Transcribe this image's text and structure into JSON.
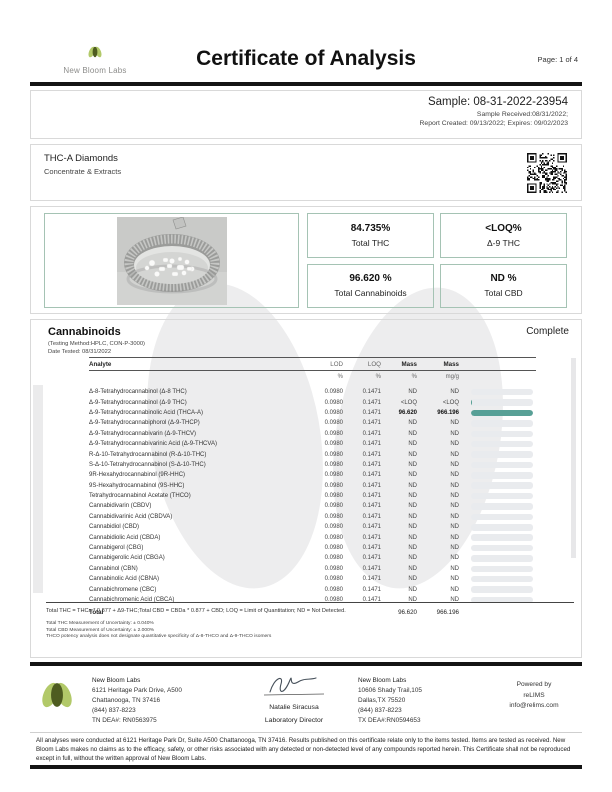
{
  "header": {
    "logo_text": "New Bloom Labs",
    "title": "Certificate of Analysis",
    "page": "Page: 1 of 4"
  },
  "sample": {
    "id_line": "Sample: 08-31-2022-23954",
    "received": "Sample Received:08/31/2022;",
    "report": "Report Created: 09/13/2022; Expires: 09/02/2023"
  },
  "product": {
    "name": "THC-A Diamonds",
    "category": "Concentrate & Extracts"
  },
  "summary": [
    {
      "value": "84.735%",
      "label": "Total THC"
    },
    {
      "value": "<LOQ%",
      "label": "Δ-9 THC"
    },
    {
      "value": "96.620 %",
      "label": "Total Cannabinoids"
    },
    {
      "value": "ND %",
      "label": "Total CBD"
    }
  ],
  "cannabinoids": {
    "title": "Cannabinoids",
    "status": "Complete",
    "method": "(Testing Method:HPLC, CON-P-3000)",
    "date_tested": "Date Tested: 08/31/2022",
    "columns": [
      "Analyte",
      "LOD",
      "LOQ",
      "Mass",
      "Mass"
    ],
    "units": [
      "",
      "%",
      "%",
      "%",
      "mg/g"
    ],
    "rows": [
      {
        "name": "Δ-8-Tetrahydrocannabinol (Δ-8 THC)",
        "lod": "0.0980",
        "loq": "0.1471",
        "mass_pct": "ND",
        "mass_mgg": "ND",
        "bar_pct": 0,
        "highlight": false
      },
      {
        "name": "Δ-9-Tetrahydrocannabinol (Δ-9 THC)",
        "lod": "0.0980",
        "loq": "0.1471",
        "mass_pct": "<LOQ",
        "mass_mgg": "<LOQ",
        "bar_pct": 2,
        "highlight": false
      },
      {
        "name": "Δ-9-Tetrahydrocannabinolic Acid (THCA-A)",
        "lod": "0.0980",
        "loq": "0.1471",
        "mass_pct": "96.620",
        "mass_mgg": "966.196",
        "bar_pct": 100,
        "highlight": true
      },
      {
        "name": "Δ-9-Tetrahydrocannabiphorol (Δ-9-THCP)",
        "lod": "0.0980",
        "loq": "0.1471",
        "mass_pct": "ND",
        "mass_mgg": "ND",
        "bar_pct": 0,
        "highlight": false
      },
      {
        "name": "Δ-9-Tetrahydrocannabivarin (Δ-9-THCV)",
        "lod": "0.0980",
        "loq": "0.1471",
        "mass_pct": "ND",
        "mass_mgg": "ND",
        "bar_pct": 0,
        "highlight": false
      },
      {
        "name": "Δ-9-Tetrahydrocannabivarinic Acid (Δ-9-THCVA)",
        "lod": "0.0980",
        "loq": "0.1471",
        "mass_pct": "ND",
        "mass_mgg": "ND",
        "bar_pct": 0,
        "highlight": false
      },
      {
        "name": "R-Δ-10-Tetrahydrocannabinol (R-Δ-10-THC)",
        "lod": "0.0980",
        "loq": "0.1471",
        "mass_pct": "ND",
        "mass_mgg": "ND",
        "bar_pct": 0,
        "highlight": false
      },
      {
        "name": "S-Δ-10-Tetrahydrocannabinol (S-Δ-10-THC)",
        "lod": "0.0980",
        "loq": "0.1471",
        "mass_pct": "ND",
        "mass_mgg": "ND",
        "bar_pct": 0,
        "highlight": false
      },
      {
        "name": "9R-Hexahydrocannabinol (9R-HHC)",
        "lod": "0.0980",
        "loq": "0.1471",
        "mass_pct": "ND",
        "mass_mgg": "ND",
        "bar_pct": 0,
        "highlight": false
      },
      {
        "name": "9S-Hexahydrocannabinol (9S-HHC)",
        "lod": "0.0980",
        "loq": "0.1471",
        "mass_pct": "ND",
        "mass_mgg": "ND",
        "bar_pct": 0,
        "highlight": false
      },
      {
        "name": "Tetrahydrocannabinol Acetate (THCO)",
        "lod": "0.0980",
        "loq": "0.1471",
        "mass_pct": "ND",
        "mass_mgg": "ND",
        "bar_pct": 0,
        "highlight": false
      },
      {
        "name": "Cannabidivarin (CBDV)",
        "lod": "0.0980",
        "loq": "0.1471",
        "mass_pct": "ND",
        "mass_mgg": "ND",
        "bar_pct": 0,
        "highlight": false
      },
      {
        "name": "Cannabidivarinic Acid (CBDVA)",
        "lod": "0.0980",
        "loq": "0.1471",
        "mass_pct": "ND",
        "mass_mgg": "ND",
        "bar_pct": 0,
        "highlight": false
      },
      {
        "name": "Cannabidiol (CBD)",
        "lod": "0.0980",
        "loq": "0.1471",
        "mass_pct": "ND",
        "mass_mgg": "ND",
        "bar_pct": 0,
        "highlight": false
      },
      {
        "name": "Cannabidiolic Acid (CBDA)",
        "lod": "0.0980",
        "loq": "0.1471",
        "mass_pct": "ND",
        "mass_mgg": "ND",
        "bar_pct": 0,
        "highlight": false
      },
      {
        "name": "Cannabigerol (CBG)",
        "lod": "0.0980",
        "loq": "0.1471",
        "mass_pct": "ND",
        "mass_mgg": "ND",
        "bar_pct": 0,
        "highlight": false
      },
      {
        "name": "Cannabigerolic Acid (CBGA)",
        "lod": "0.0980",
        "loq": "0.1471",
        "mass_pct": "ND",
        "mass_mgg": "ND",
        "bar_pct": 0,
        "highlight": false
      },
      {
        "name": "Cannabinol (CBN)",
        "lod": "0.0980",
        "loq": "0.1471",
        "mass_pct": "ND",
        "mass_mgg": "ND",
        "bar_pct": 0,
        "highlight": false
      },
      {
        "name": "Cannabinolic Acid (CBNA)",
        "lod": "0.0980",
        "loq": "0.1471",
        "mass_pct": "ND",
        "mass_mgg": "ND",
        "bar_pct": 0,
        "highlight": false
      },
      {
        "name": "Cannabichromene (CBC)",
        "lod": "0.0980",
        "loq": "0.1471",
        "mass_pct": "ND",
        "mass_mgg": "ND",
        "bar_pct": 0,
        "highlight": false
      },
      {
        "name": "Cannabichromenic Acid (CBCA)",
        "lod": "0.0980",
        "loq": "0.1471",
        "mass_pct": "ND",
        "mass_mgg": "ND",
        "bar_pct": 0,
        "highlight": false
      }
    ],
    "total": {
      "label": "Total",
      "mass_pct": "96.620",
      "mass_mgg": "966.196"
    },
    "footnote1": "Total THC = THCa * 0.877 + Δ9-THC;Total CBD = CBDa * 0.877 + CBD; LOQ = Limit of Quantitation; ND = Not Detected.",
    "footnotes_small": [
      "Total THC Measurement of Uncertainty: ± 0.040%",
      "Total CBD Measurement of Uncertainty: ± 2.000%",
      "THCO potency analysis does not designate quantitative specificity of Δ-8-THCO and Δ-9-THCO isomers"
    ]
  },
  "footer": {
    "lab1": {
      "name": "New Bloom Labs",
      "addr1": "6121 Heritage Park Drive, A500",
      "addr2": "Chattanooga, TN 37416",
      "phone": "(844) 837-8223",
      "dea": "TN DEA#: RN0563975"
    },
    "signature": {
      "name": "Natalie Siracusa",
      "title": "Laboratory Director"
    },
    "lab2": {
      "name": "New Bloom Labs",
      "addr1": "10606 Shady Trail,105",
      "addr2": "Dallas,TX 75520",
      "phone": "(844) 837-8223",
      "dea": "TX DEA#:RN0594653"
    },
    "powered": {
      "line1": "Powered by",
      "line2": "reLIMS",
      "line3": "info@relims.com"
    }
  },
  "disclaimer": "All analyses were conducted at 6121 Heritage Park Dr, Suite A500 Chattanooga, TN 37416. Results published on this certificate relate only to the items tested. Items are tested as received. New Bloom Labs makes no claims as to the efficacy, safety, or other risks associated with any detected or non-detected level of any compounds reported herein. This Certificate shall not be reproduced except in full, without the written approval of New Bloom Labs.",
  "icons": {
    "logo": "new-bloom-two-leaf-logo",
    "qr": "qr-code",
    "photo": "sample-photo-foil-dish-with-crystals",
    "signature": "handwritten-signature"
  },
  "colors": {
    "accent_teal": "#58a096",
    "border_green": "#a5c3b4",
    "leaf_light": "#b2c969",
    "leaf_dark": "#4e5c20",
    "bar_track": "#e9ebee",
    "divider_black": "#141414"
  }
}
